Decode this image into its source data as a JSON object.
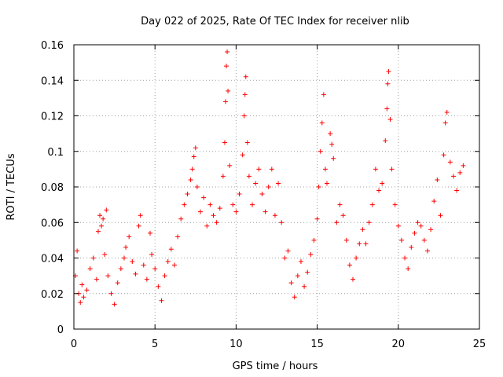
{
  "chart_data": {
    "type": "scatter",
    "title": "Day 022 of 2025, Rate Of TEC Index for receiver nlib",
    "xlabel": "GPS time / hours",
    "ylabel": "ROTI / TECUs",
    "xlim": [
      0,
      25
    ],
    "ylim": [
      0,
      0.16
    ],
    "xticks": [
      "0",
      "5",
      "10",
      "15",
      "20",
      "25"
    ],
    "yticks": [
      "0",
      "0.02",
      "0.04",
      "0.06",
      "0.08",
      "0.1",
      "0.12",
      "0.14",
      "0.16"
    ],
    "grid": true,
    "marker": "plus",
    "series": [
      {
        "color": "#ff0000",
        "points": [
          [
            0.1,
            0.03
          ],
          [
            0.2,
            0.044
          ],
          [
            0.3,
            0.02
          ],
          [
            0.4,
            0.015
          ],
          [
            0.5,
            0.025
          ],
          [
            0.6,
            0.018
          ],
          [
            0.8,
            0.022
          ],
          [
            1.0,
            0.034
          ],
          [
            1.2,
            0.04
          ],
          [
            1.4,
            0.028
          ],
          [
            1.5,
            0.055
          ],
          [
            1.6,
            0.064
          ],
          [
            1.7,
            0.058
          ],
          [
            1.8,
            0.062
          ],
          [
            1.9,
            0.042
          ],
          [
            2.0,
            0.067
          ],
          [
            2.1,
            0.03
          ],
          [
            2.3,
            0.02
          ],
          [
            2.5,
            0.014
          ],
          [
            2.7,
            0.026
          ],
          [
            2.9,
            0.034
          ],
          [
            3.1,
            0.04
          ],
          [
            3.2,
            0.046
          ],
          [
            3.4,
            0.052
          ],
          [
            3.6,
            0.038
          ],
          [
            3.8,
            0.031
          ],
          [
            4.0,
            0.058
          ],
          [
            4.1,
            0.064
          ],
          [
            4.3,
            0.036
          ],
          [
            4.5,
            0.028
          ],
          [
            4.7,
            0.054
          ],
          [
            4.8,
            0.042
          ],
          [
            5.0,
            0.034
          ],
          [
            5.2,
            0.024
          ],
          [
            5.4,
            0.016
          ],
          [
            5.6,
            0.03
          ],
          [
            5.8,
            0.038
          ],
          [
            6.0,
            0.045
          ],
          [
            6.2,
            0.036
          ],
          [
            6.4,
            0.052
          ],
          [
            6.6,
            0.062
          ],
          [
            6.8,
            0.07
          ],
          [
            7.0,
            0.076
          ],
          [
            7.2,
            0.084
          ],
          [
            7.3,
            0.09
          ],
          [
            7.4,
            0.097
          ],
          [
            7.5,
            0.102
          ],
          [
            7.6,
            0.08
          ],
          [
            7.8,
            0.066
          ],
          [
            8.0,
            0.074
          ],
          [
            8.2,
            0.058
          ],
          [
            8.4,
            0.07
          ],
          [
            8.6,
            0.064
          ],
          [
            8.8,
            0.06
          ],
          [
            9.0,
            0.068
          ],
          [
            9.2,
            0.086
          ],
          [
            9.3,
            0.105
          ],
          [
            9.35,
            0.128
          ],
          [
            9.4,
            0.148
          ],
          [
            9.45,
            0.156
          ],
          [
            9.5,
            0.134
          ],
          [
            9.6,
            0.092
          ],
          [
            9.8,
            0.07
          ],
          [
            10.0,
            0.066
          ],
          [
            10.2,
            0.076
          ],
          [
            10.4,
            0.098
          ],
          [
            10.5,
            0.12
          ],
          [
            10.55,
            0.132
          ],
          [
            10.6,
            0.142
          ],
          [
            10.7,
            0.105
          ],
          [
            10.8,
            0.086
          ],
          [
            11.0,
            0.07
          ],
          [
            11.2,
            0.082
          ],
          [
            11.4,
            0.09
          ],
          [
            11.6,
            0.076
          ],
          [
            11.8,
            0.066
          ],
          [
            12.0,
            0.08
          ],
          [
            12.2,
            0.09
          ],
          [
            12.4,
            0.064
          ],
          [
            12.6,
            0.082
          ],
          [
            12.8,
            0.06
          ],
          [
            13.0,
            0.04
          ],
          [
            13.2,
            0.044
          ],
          [
            13.4,
            0.026
          ],
          [
            13.6,
            0.018
          ],
          [
            13.8,
            0.03
          ],
          [
            14.0,
            0.038
          ],
          [
            14.2,
            0.024
          ],
          [
            14.4,
            0.032
          ],
          [
            14.6,
            0.042
          ],
          [
            14.8,
            0.05
          ],
          [
            15.0,
            0.062
          ],
          [
            15.1,
            0.08
          ],
          [
            15.2,
            0.1
          ],
          [
            15.3,
            0.116
          ],
          [
            15.4,
            0.132
          ],
          [
            15.5,
            0.09
          ],
          [
            15.6,
            0.082
          ],
          [
            15.8,
            0.11
          ],
          [
            15.9,
            0.104
          ],
          [
            16.0,
            0.096
          ],
          [
            16.2,
            0.06
          ],
          [
            16.4,
            0.07
          ],
          [
            16.6,
            0.064
          ],
          [
            16.8,
            0.05
          ],
          [
            17.0,
            0.036
          ],
          [
            17.2,
            0.028
          ],
          [
            17.4,
            0.04
          ],
          [
            17.6,
            0.048
          ],
          [
            17.8,
            0.056
          ],
          [
            18.0,
            0.048
          ],
          [
            18.2,
            0.06
          ],
          [
            18.4,
            0.07
          ],
          [
            18.6,
            0.09
          ],
          [
            18.8,
            0.078
          ],
          [
            19.0,
            0.082
          ],
          [
            19.2,
            0.106
          ],
          [
            19.3,
            0.124
          ],
          [
            19.35,
            0.138
          ],
          [
            19.4,
            0.145
          ],
          [
            19.5,
            0.118
          ],
          [
            19.6,
            0.09
          ],
          [
            19.8,
            0.07
          ],
          [
            20.0,
            0.058
          ],
          [
            20.2,
            0.05
          ],
          [
            20.4,
            0.04
          ],
          [
            20.6,
            0.034
          ],
          [
            20.8,
            0.046
          ],
          [
            21.0,
            0.054
          ],
          [
            21.2,
            0.06
          ],
          [
            21.4,
            0.058
          ],
          [
            21.6,
            0.05
          ],
          [
            21.8,
            0.044
          ],
          [
            22.0,
            0.056
          ],
          [
            22.2,
            0.072
          ],
          [
            22.4,
            0.084
          ],
          [
            22.6,
            0.064
          ],
          [
            22.8,
            0.098
          ],
          [
            22.9,
            0.116
          ],
          [
            23.0,
            0.122
          ],
          [
            23.2,
            0.094
          ],
          [
            23.4,
            0.086
          ],
          [
            23.6,
            0.078
          ],
          [
            23.8,
            0.088
          ],
          [
            24.0,
            0.092
          ]
        ]
      }
    ]
  }
}
